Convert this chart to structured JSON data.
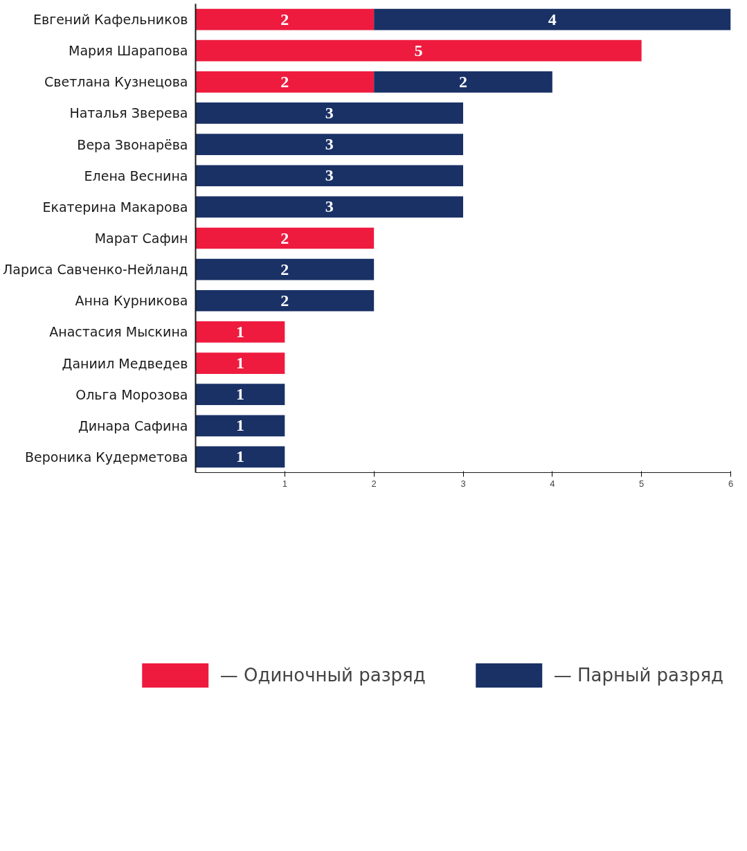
{
  "chart_data": {
    "type": "bar",
    "orientation": "horizontal",
    "stacked": true,
    "categories": [
      "Евгений Кафельников",
      "Мария Шарапова",
      "Светлана Кузнецова",
      "Наталья Зверева",
      "Вера Звонарёва",
      "Елена Веснина",
      "Екатерина Макарова",
      "Марат Сафин",
      "Лариса Савченко-Нейланд",
      "Анна Курникова",
      "Анастасия Мыскина",
      "Даниил Медведев",
      "Ольга Морозова",
      "Динара Сафина",
      "Вероника Кудерметова"
    ],
    "series": [
      {
        "name": "— Одиночный разряд",
        "color": "#ee1b3f",
        "values": [
          2,
          5,
          2,
          null,
          null,
          null,
          null,
          2,
          null,
          null,
          1,
          1,
          null,
          null,
          null
        ]
      },
      {
        "name": "— Парный разряд",
        "color": "#1a3166",
        "values": [
          4,
          null,
          2,
          3,
          3,
          3,
          3,
          null,
          2,
          2,
          null,
          null,
          1,
          1,
          1
        ]
      }
    ],
    "xlim": [
      0,
      6
    ],
    "xticks": [
      1,
      2,
      3,
      4,
      5,
      6
    ],
    "data_labels": true,
    "grid": false,
    "legend": "bottom"
  }
}
